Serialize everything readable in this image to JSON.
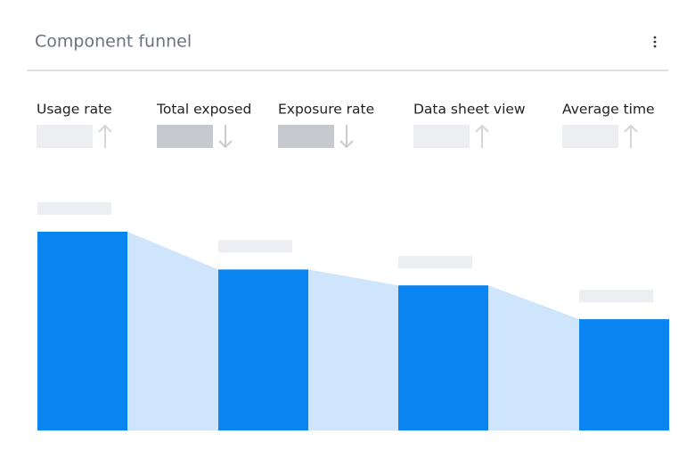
{
  "header": {
    "title": "Component funnel"
  },
  "metrics": [
    {
      "label": "Usage rate",
      "trend": "up"
    },
    {
      "label": "Total exposed",
      "trend": "down"
    },
    {
      "label": "Exposure rate",
      "trend": "down"
    },
    {
      "label": "Data sheet view",
      "trend": "up"
    },
    {
      "label": "Average time",
      "trend": "up"
    }
  ],
  "chart_data": {
    "type": "funnel",
    "categories": [
      null,
      null,
      null,
      null
    ],
    "values": [
      100,
      81,
      73,
      56
    ],
    "ylim": [
      0,
      100
    ],
    "color": "#0a84f0",
    "connector_color": "#cfe5fb"
  }
}
